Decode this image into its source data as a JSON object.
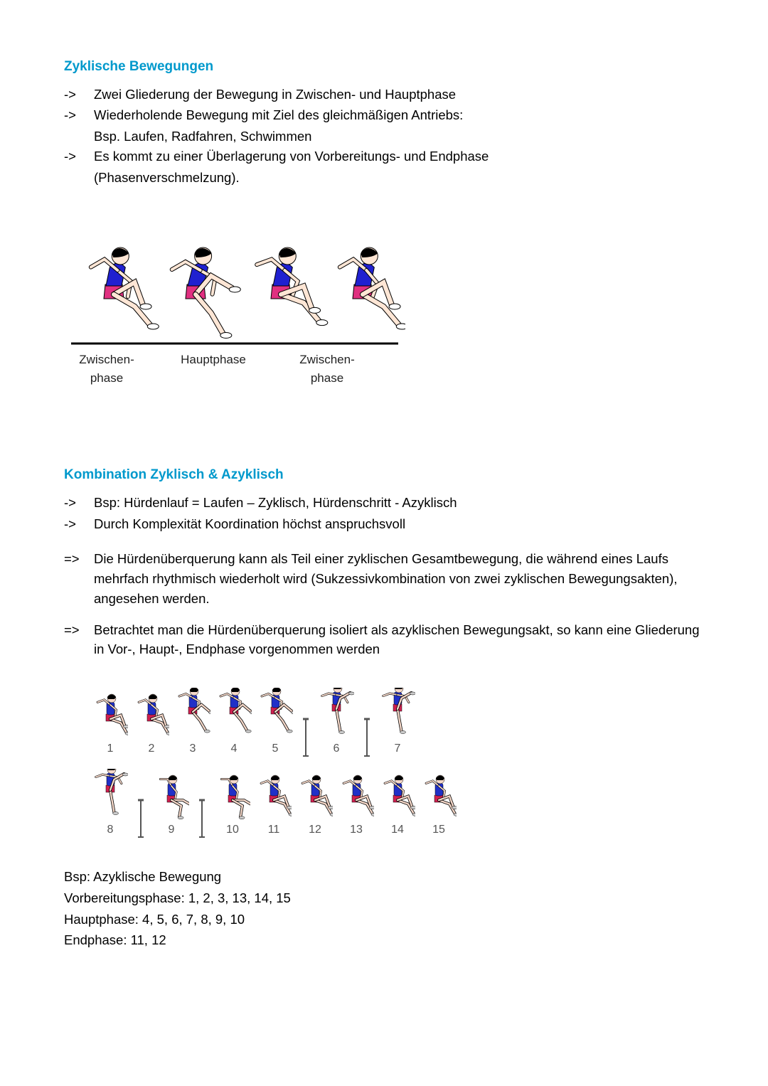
{
  "section1": {
    "title": "Zyklische Bewegungen",
    "items": [
      {
        "marker": "->",
        "text": "Zwei Gliederung der Bewegung in Zwischen- und Hauptphase"
      },
      {
        "marker": "->",
        "text": "Wiederholende Bewegung mit Ziel des gleichmäßigen Antriebs:",
        "sub": "Bsp. Laufen, Radfahren, Schwimmen"
      },
      {
        "marker": "->",
        "text": "Es kommt zu einer Überlagerung von Vorbereitungs- und Endphase",
        "sub": "(Phasenverschmelzung)."
      }
    ]
  },
  "fig1": {
    "labels": [
      "Zwischen-\nphase",
      "Hauptphase",
      "Zwischen-\nphase"
    ],
    "colors": {
      "skin": "#ffe6d5",
      "hair": "#000000",
      "shirt": "#2020d0",
      "shorts": "#e03080",
      "shoe": "#ffffff",
      "outline": "#000000",
      "ground": "#000000"
    }
  },
  "section2": {
    "title": "Kombination Zyklisch & Azyklisch",
    "itemsA": [
      {
        "marker": "->",
        "text": "Bsp: Hürdenlauf = Laufen – Zyklisch, Hürdenschritt - Azyklisch"
      },
      {
        "marker": "->",
        "text": "Durch Komplexität Koordination höchst anspruchsvoll"
      }
    ],
    "itemsB": [
      {
        "marker": "=>",
        "text": "Die Hürdenüberquerung kann als Teil einer zyklischen Gesamtbewegung, die während eines Laufs mehrfach rhythmisch wiederholt wird (Sukzessivkombination von zwei zyklischen Bewegungsakten), angesehen werden."
      },
      {
        "marker": "=>",
        "text": "Betrachtet man die Hürdenüberquerung isoliert als azyklischen Bewegungsakt, so kann eine Gliederung in Vor-, Haupt-, Endphase vorgenommen werden"
      }
    ]
  },
  "fig2": {
    "frames_row1": [
      "1",
      "2",
      "3",
      "4",
      "5",
      "6",
      "7"
    ],
    "frames_row2": [
      "8",
      "9",
      "10",
      "11",
      "12",
      "13",
      "14",
      "15"
    ],
    "colors": {
      "skin": "#f4d7c8",
      "hair": "#000000",
      "shirt": "#2030c8",
      "shorts": "#d02050",
      "shoe": "#cccccc",
      "outline": "#000000",
      "hurdle": "#555555"
    }
  },
  "bottom": {
    "l1": "Bsp: Azyklische Bewegung",
    "l2": "Vorbereitungsphase: 1, 2, 3, 13, 14, 15",
    "l3": "Hauptphase: 4, 5, 6, 7, 8, 9, 10",
    "l4": "Endphase: 11, 12"
  },
  "style": {
    "heading_color": "#0099cc",
    "text_color": "#000000",
    "bg": "#ffffff"
  }
}
